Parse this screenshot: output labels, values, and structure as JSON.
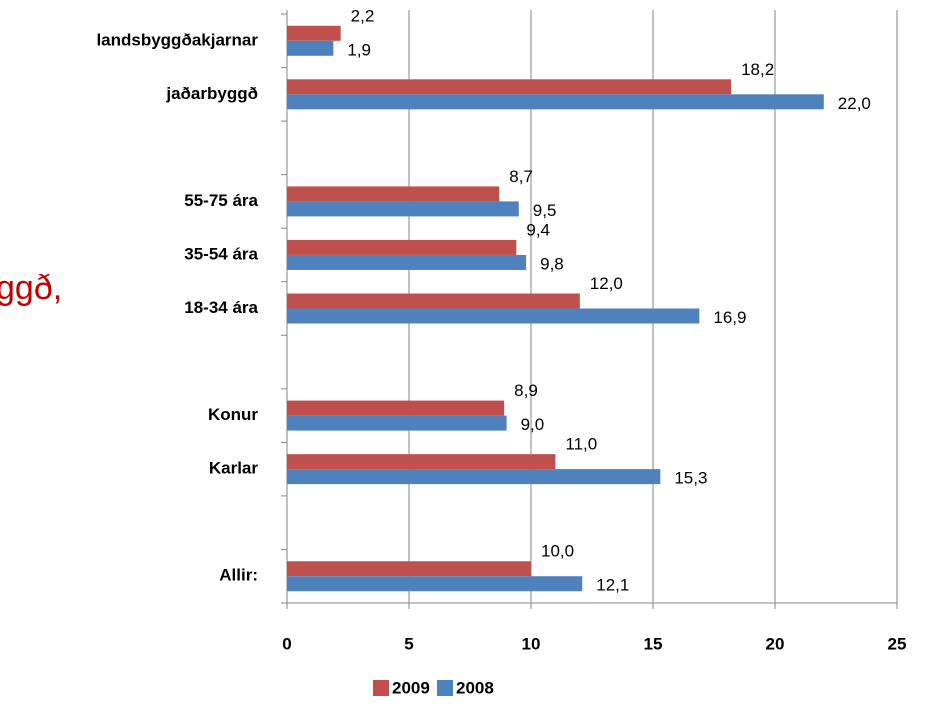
{
  "chart_data": {
    "type": "hbar",
    "fragment": "ggð,",
    "categories": [
      "landsbyggðakjarnar",
      "jaðarbyggð",
      null,
      "55-75 ára",
      "35-54 ára",
      "18-34 ára",
      null,
      "Konur",
      "Karlar",
      null,
      "Allir:"
    ],
    "series": [
      {
        "name": "2009",
        "color": "#c0504d",
        "values": [
          2.2,
          18.2,
          null,
          8.7,
          9.4,
          12.0,
          null,
          8.9,
          11.0,
          null,
          10.0
        ],
        "value_labels": [
          "2,2",
          "18,2",
          null,
          "8,7",
          "9,4",
          "12,0",
          null,
          "8,9",
          "11,0",
          null,
          "10,0"
        ]
      },
      {
        "name": "2008",
        "color": "#4f81bd",
        "values": [
          1.9,
          22.0,
          null,
          9.5,
          9.8,
          16.9,
          null,
          9.0,
          15.3,
          null,
          12.1
        ],
        "value_labels": [
          "1,9",
          "22,0",
          null,
          "9,5",
          "9,8",
          "16,9",
          null,
          "9,0",
          "15,3",
          null,
          "12,1"
        ]
      }
    ],
    "xlim": [
      0,
      25
    ],
    "xticks": [
      0,
      5,
      10,
      15,
      20,
      25
    ],
    "grid": true,
    "legend": "bottom"
  }
}
